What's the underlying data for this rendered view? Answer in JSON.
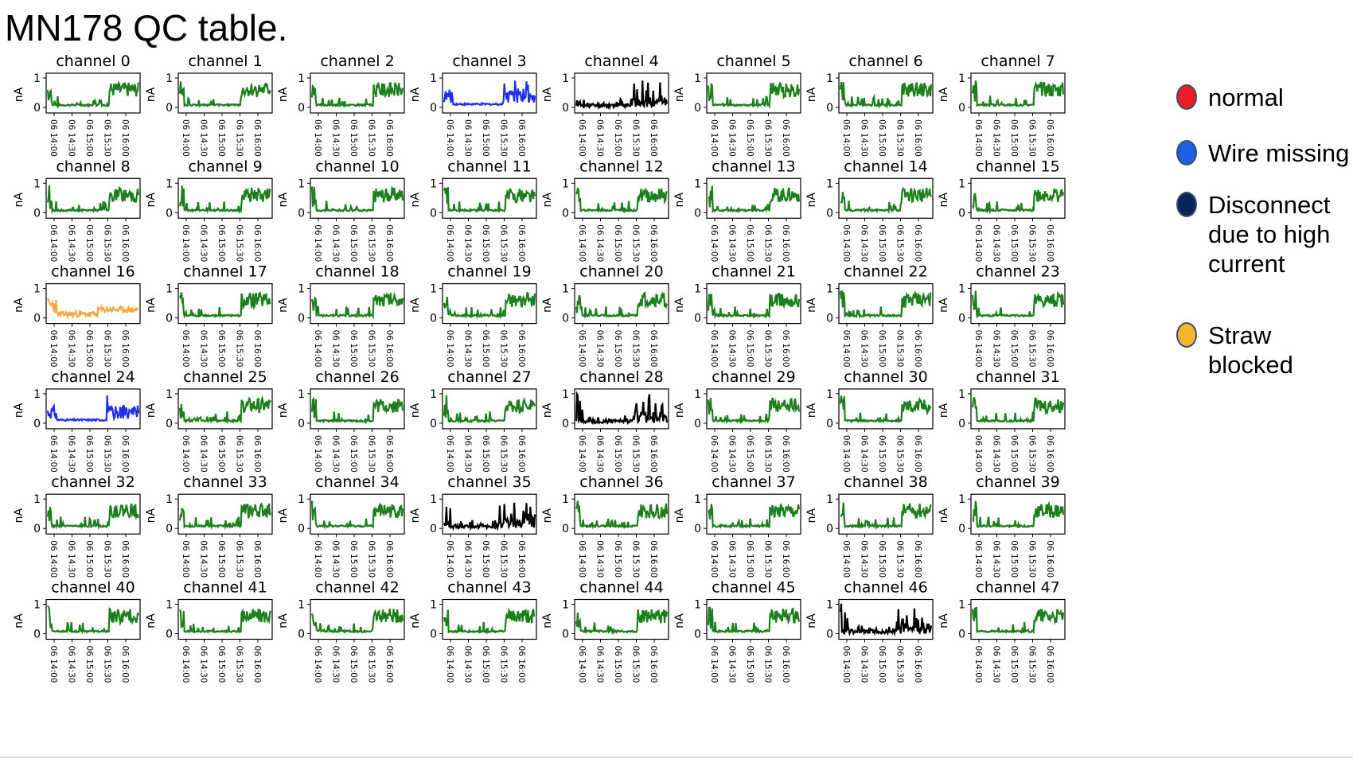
{
  "title": "MN178 QC table.",
  "colors": {
    "normal_trace": "#1b7f1b",
    "wire_missing_trace": "#1f2ff0",
    "disconnect_trace": "#000000",
    "straw_blocked_trace": "#f7a83a"
  },
  "legend": [
    {
      "label": "normal",
      "color": "#ee1c24"
    },
    {
      "label": "Wire missing",
      "color": "#1f5fe8"
    },
    {
      "label": "Disconnect\ndue to high\ncurrent",
      "color": "#0c2455"
    },
    {
      "label": "Straw\nblocked",
      "color": "#f7b52d"
    }
  ],
  "chart_data": {
    "type": "line",
    "ylabel": "nA",
    "yticks": [
      "0",
      "1"
    ],
    "ylim": [
      0,
      1
    ],
    "xticks": [
      "06 14:00",
      "06 14:30",
      "06 15:00",
      "06 15:30",
      "06 16:00"
    ],
    "subplots": [
      {
        "title": "channel 0",
        "status": "normal"
      },
      {
        "title": "channel 1",
        "status": "normal"
      },
      {
        "title": "channel 2",
        "status": "normal"
      },
      {
        "title": "channel 3",
        "status": "wire_missing"
      },
      {
        "title": "channel 4",
        "status": "disconnect"
      },
      {
        "title": "channel 5",
        "status": "normal"
      },
      {
        "title": "channel 6",
        "status": "normal"
      },
      {
        "title": "channel 7",
        "status": "normal"
      },
      {
        "title": "channel 8",
        "status": "normal"
      },
      {
        "title": "channel 9",
        "status": "normal"
      },
      {
        "title": "channel 10",
        "status": "normal"
      },
      {
        "title": "channel 11",
        "status": "normal"
      },
      {
        "title": "channel 12",
        "status": "normal"
      },
      {
        "title": "channel 13",
        "status": "normal"
      },
      {
        "title": "channel 14",
        "status": "normal"
      },
      {
        "title": "channel 15",
        "status": "normal"
      },
      {
        "title": "channel 16",
        "status": "straw_blocked"
      },
      {
        "title": "channel 17",
        "status": "normal"
      },
      {
        "title": "channel 18",
        "status": "normal"
      },
      {
        "title": "channel 19",
        "status": "normal"
      },
      {
        "title": "channel 20",
        "status": "normal"
      },
      {
        "title": "channel 21",
        "status": "normal"
      },
      {
        "title": "channel 22",
        "status": "normal"
      },
      {
        "title": "channel 23",
        "status": "normal"
      },
      {
        "title": "channel 24",
        "status": "wire_missing"
      },
      {
        "title": "channel 25",
        "status": "normal"
      },
      {
        "title": "channel 26",
        "status": "normal"
      },
      {
        "title": "channel 27",
        "status": "normal"
      },
      {
        "title": "channel 28",
        "status": "disconnect"
      },
      {
        "title": "channel 29",
        "status": "normal"
      },
      {
        "title": "channel 30",
        "status": "normal"
      },
      {
        "title": "channel 31",
        "status": "normal"
      },
      {
        "title": "channel 32",
        "status": "normal"
      },
      {
        "title": "channel 33",
        "status": "normal"
      },
      {
        "title": "channel 34",
        "status": "normal"
      },
      {
        "title": "channel 35",
        "status": "disconnect"
      },
      {
        "title": "channel 36",
        "status": "normal"
      },
      {
        "title": "channel 37",
        "status": "normal"
      },
      {
        "title": "channel 38",
        "status": "normal"
      },
      {
        "title": "channel 39",
        "status": "normal"
      },
      {
        "title": "channel 40",
        "status": "normal"
      },
      {
        "title": "channel 41",
        "status": "normal"
      },
      {
        "title": "channel 42",
        "status": "normal"
      },
      {
        "title": "channel 43",
        "status": "normal"
      },
      {
        "title": "channel 44",
        "status": "normal"
      },
      {
        "title": "channel 45",
        "status": "normal"
      },
      {
        "title": "channel 46",
        "status": "disconnect"
      },
      {
        "title": "channel 47",
        "status": "normal"
      }
    ]
  }
}
